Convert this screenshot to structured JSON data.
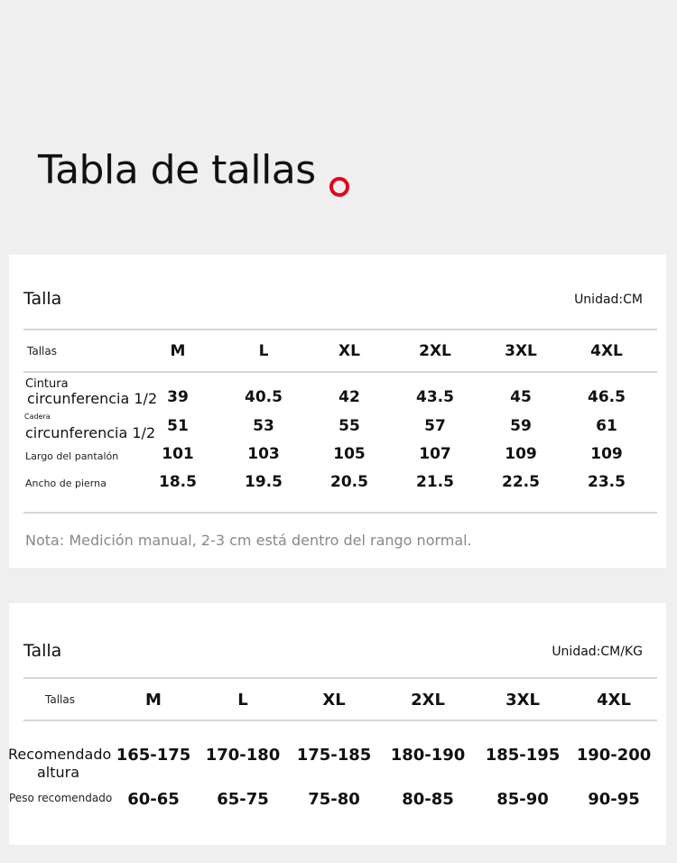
{
  "title": "Tabla de tallas",
  "accent": "#e3001b",
  "table1": {
    "heading": "Talla",
    "unit": "Unidad:CM",
    "header_label": "Tallas",
    "sizes": [
      "M",
      "L",
      "XL",
      "2XL",
      "3XL",
      "4XL"
    ],
    "rows": [
      {
        "label_small": "Cintura",
        "label": "circunferencia 1/2",
        "values": [
          "39",
          "40.5",
          "42",
          "43.5",
          "45",
          "46.5"
        ]
      },
      {
        "label_small": "Cadera",
        "label": "circunferencia 1/2",
        "values": [
          "51",
          "53",
          "55",
          "57",
          "59",
          "61"
        ]
      },
      {
        "label": "Largo del pantalón",
        "values": [
          "101",
          "103",
          "105",
          "107",
          "109",
          "109"
        ]
      },
      {
        "label": "Ancho de pierna",
        "values": [
          "18.5",
          "19.5",
          "20.5",
          "21.5",
          "22.5",
          "23.5"
        ]
      }
    ],
    "note": "Nota: Medición manual, 2-3 cm está dentro del rango normal."
  },
  "table2": {
    "heading": "Talla",
    "unit": "Unidad:CM/KG",
    "header_label": "Tallas",
    "sizes": [
      "M",
      "L",
      "XL",
      "2XL",
      "3XL",
      "4XL"
    ],
    "rows": [
      {
        "label": "Recomendado",
        "label2": "altura",
        "values": [
          "165-175",
          "170-180",
          "175-185",
          "180-190",
          "185-195",
          "190-200"
        ]
      },
      {
        "label": "Peso recomendado",
        "values": [
          "60-65",
          "65-75",
          "75-80",
          "80-85",
          "85-90",
          "90-95"
        ]
      }
    ]
  }
}
